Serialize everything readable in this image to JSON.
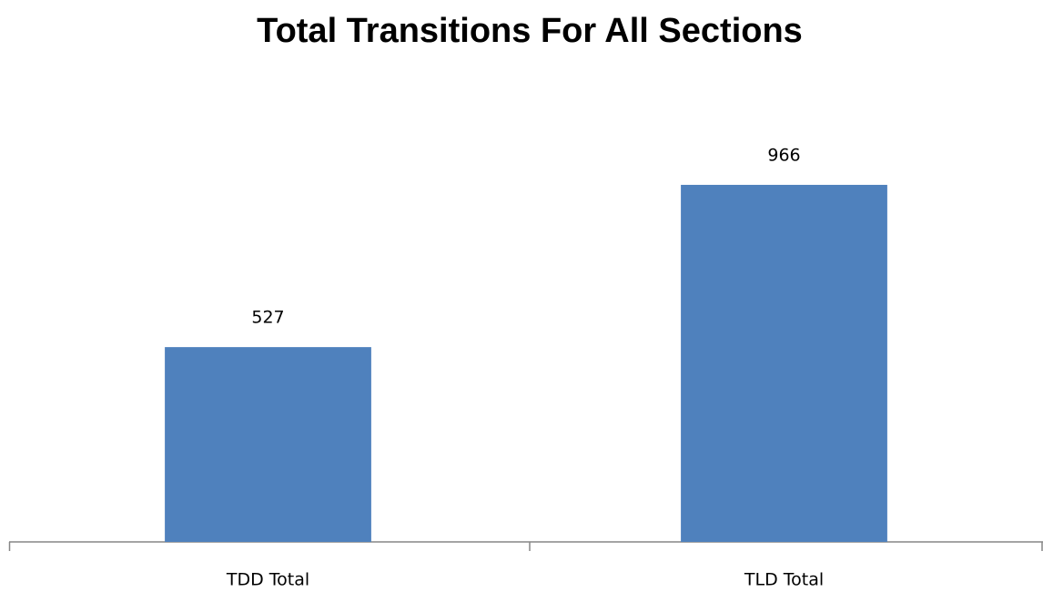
{
  "chart_data": {
    "type": "bar",
    "title": "Total Transitions For All Sections",
    "categories": [
      "TDD Total",
      "TLD Total"
    ],
    "values": [
      527,
      966
    ],
    "color": "#4f81bd",
    "ylim": [
      0,
      1200
    ]
  }
}
